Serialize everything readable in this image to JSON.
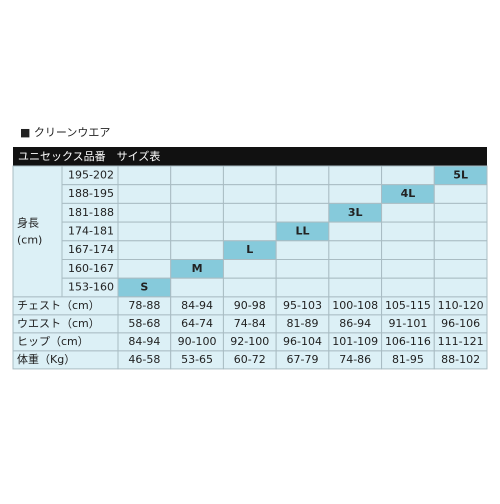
{
  "title": "■ クリーンウエア",
  "table": {
    "caption": "ユニセックス品番　サイズ表",
    "height_label": [
      "身長",
      "(cm)"
    ],
    "heights": [
      "195-202",
      "188-195",
      "181-188",
      "174-181",
      "167-174",
      "160-167",
      "153-160"
    ],
    "sizes": [
      "S",
      "M",
      "L",
      "LL",
      "3L",
      "4L",
      "5L"
    ],
    "rows": [
      {
        "label": "チェスト（cm）",
        "values": [
          "78-88",
          "84-94",
          "90-98",
          "95-103",
          "100-108",
          "105-115",
          "110-120"
        ]
      },
      {
        "label": "ウエスト（cm）",
        "values": [
          "58-68",
          "64-74",
          "74-84",
          "81-89",
          "86-94",
          "91-101",
          "96-106"
        ]
      },
      {
        "label": "ヒップ（cm）",
        "values": [
          "84-94",
          "90-100",
          "92-100",
          "96-104",
          "101-109",
          "106-116",
          "111-121"
        ]
      },
      {
        "label": "体重（Kg）",
        "values": [
          "46-58",
          "53-65",
          "60-72",
          "67-79",
          "74-86",
          "81-95",
          "88-102"
        ]
      }
    ]
  }
}
